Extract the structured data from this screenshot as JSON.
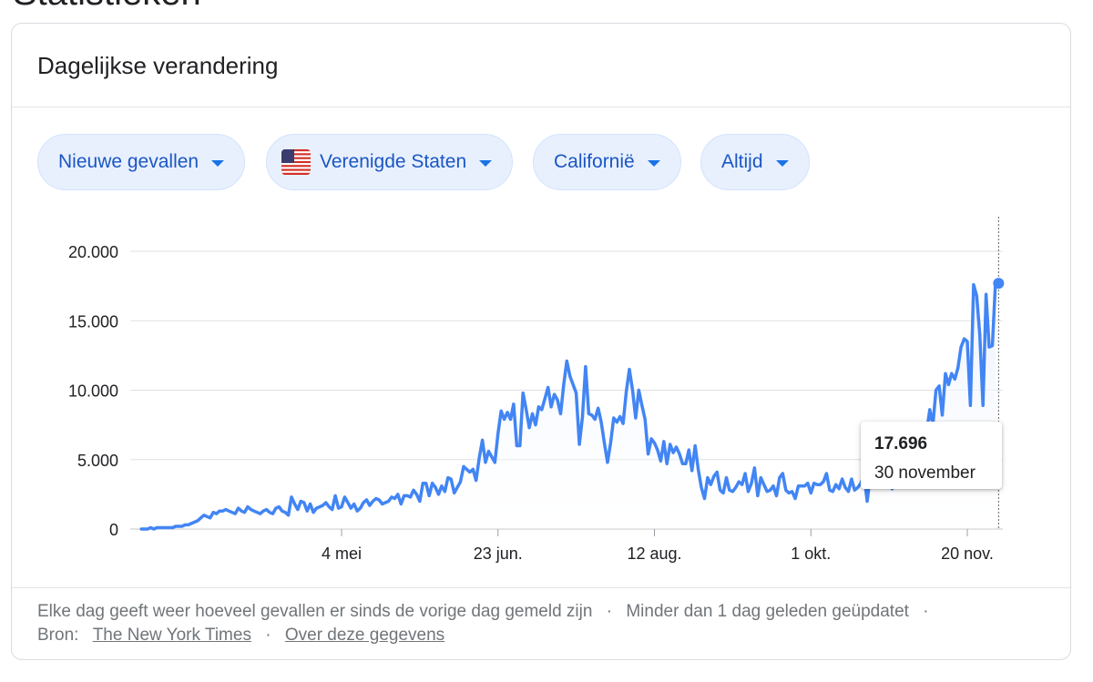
{
  "page_title_partial": "Statistieken",
  "card": {
    "title": "Dagelijkse verandering"
  },
  "filters": {
    "metric": "Nieuwe gevallen",
    "country": "Verenigde Staten",
    "region": "Californië",
    "period": "Altijd"
  },
  "footer": {
    "description": "Elke dag geeft weer hoeveel gevallen er sinds de vorige dag gemeld zijn",
    "updated": "Minder dan 1 dag geleden geüpdatet",
    "source_label": "Bron:",
    "source_link": "The New York Times",
    "about_link": "Over deze gegevens",
    "separator": "·"
  },
  "tooltip": {
    "value": "17.696",
    "date": "30 november"
  },
  "colors": {
    "line": "#4285f4",
    "area_top": "#e8f0fe",
    "chip_bg": "#e8f0fe",
    "chip_text": "#1a56c4",
    "grid": "#e0e0e0"
  },
  "chart_data": {
    "type": "line",
    "x_start": "2020-03-01",
    "y_ticks": [
      0,
      5000,
      10000,
      15000,
      20000
    ],
    "y_tick_labels": [
      "0",
      "5.000",
      "10.000",
      "15.000",
      "20.000"
    ],
    "ylim": [
      0,
      21500
    ],
    "x_ticks": [
      {
        "date": "2020-05-04",
        "label": "4 mei"
      },
      {
        "date": "2020-06-23",
        "label": "23 jun."
      },
      {
        "date": "2020-08-12",
        "label": "12 aug."
      },
      {
        "date": "2020-10-01",
        "label": "1 okt."
      },
      {
        "date": "2020-11-20",
        "label": "20 nov."
      }
    ],
    "grid": true,
    "highlight": {
      "date": "2020-11-30",
      "value": 17696
    },
    "series": [
      {
        "values": [
          0,
          0,
          0,
          100,
          0,
          100,
          100,
          100,
          100,
          100,
          100,
          200,
          200,
          200,
          300,
          300,
          400,
          500,
          600,
          800,
          1000,
          900,
          800,
          1200,
          1100,
          1300,
          1300,
          1400,
          1300,
          1200,
          1100,
          1500,
          1300,
          1200,
          1600,
          1400,
          1300,
          1200,
          1100,
          1300,
          1400,
          1200,
          1100,
          1500,
          1600,
          1300,
          1200,
          1000,
          2300,
          1800,
          1400,
          2000,
          1900,
          1300,
          1800,
          1200,
          1500,
          1600,
          1700,
          1900,
          1600,
          1400,
          2400,
          1500,
          1600,
          2300,
          1900,
          1500,
          1800,
          1300,
          1500,
          1900,
          2100,
          1700,
          2000,
          2200,
          2100,
          1800,
          1900,
          2000,
          2300,
          2200,
          2500,
          1800,
          2400,
          2400,
          2300,
          2800,
          2500,
          2000,
          3300,
          3300,
          2400,
          3300,
          3000,
          2500,
          3100,
          2700,
          3700,
          3600,
          2600,
          3000,
          3400,
          4500,
          4300,
          4100,
          4300,
          3500,
          5100,
          6400,
          4800,
          5600,
          5200,
          4800,
          6900,
          8500,
          7900,
          8400,
          7900,
          9000,
          6000,
          6000,
          9800,
          8600,
          7300,
          8300,
          7500,
          8800,
          8600,
          9400,
          10200,
          8800,
          9700,
          9300,
          8300,
          10400,
          12100,
          11000,
          10400,
          9800,
          6100,
          8100,
          11700,
          8300,
          8200,
          7900,
          8700,
          7700,
          6200,
          4800,
          6200,
          8000,
          7700,
          8100,
          7600,
          9900,
          11500,
          10000,
          8000,
          10000,
          8900,
          7900,
          5400,
          6500,
          6200,
          5700,
          4900,
          6300,
          4700,
          6100,
          5500,
          5900,
          5400,
          4700,
          4700,
          5700,
          4200,
          6000,
          4300,
          3000,
          2200,
          3700,
          3200,
          3800,
          4100,
          2800,
          2600,
          3700,
          2800,
          2700,
          3000,
          3400,
          3200,
          4000,
          2700,
          3300,
          4400,
          2400,
          3700,
          3200,
          2700,
          2800,
          3100,
          2400,
          3700,
          4000,
          2800,
          2600,
          2700,
          2200,
          3100,
          3100,
          3100,
          3300,
          2600,
          3300,
          3200,
          3200,
          3400,
          4000,
          2800,
          2700,
          3200,
          2900,
          3600,
          3000,
          2700,
          3600,
          2800,
          3000,
          3300,
          3900,
          2000,
          3900,
          3600,
          3200,
          3900,
          3800,
          3400,
          4300,
          2900,
          4200,
          3500,
          3800,
          4300,
          5400,
          4700,
          4300,
          6300,
          6800,
          5600,
          7000,
          8600,
          7500,
          10000,
          10300,
          8200,
          11200,
          10400,
          11200,
          10800,
          11600,
          13100,
          13700,
          13500,
          8900,
          17600,
          16800,
          14000,
          8900,
          16900,
          13100,
          13200,
          17696
        ]
      }
    ]
  }
}
